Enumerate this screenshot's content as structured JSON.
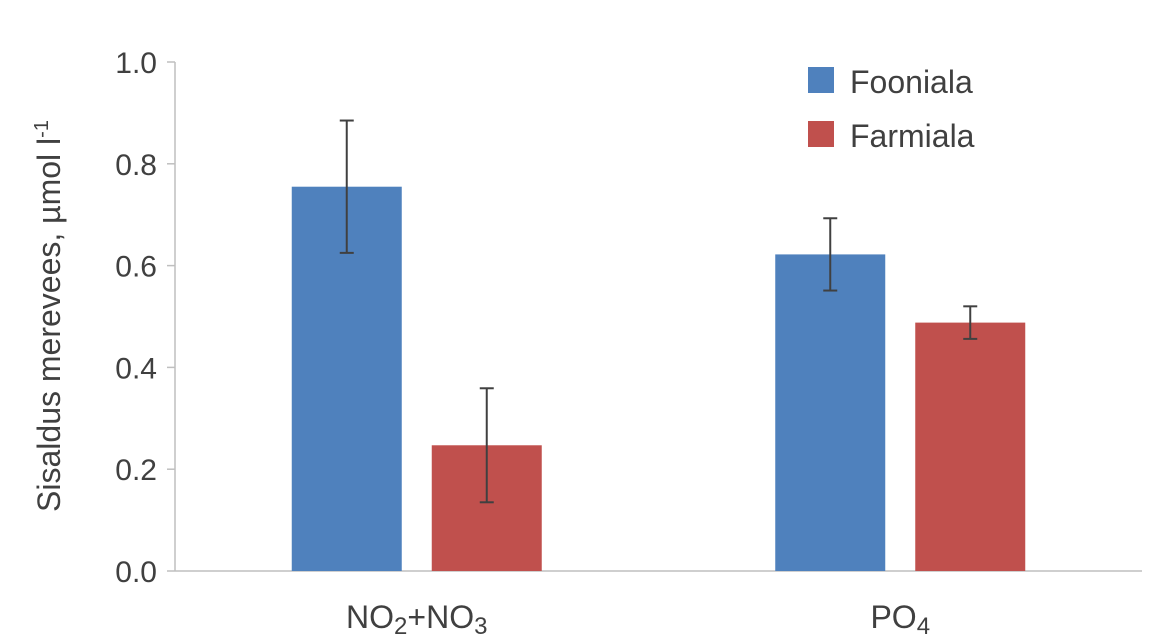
{
  "chart_data": {
    "type": "bar",
    "categories": [
      "NO2+NO3",
      "PO4"
    ],
    "category_labels": [
      {
        "parts": [
          {
            "text": "NO",
            "sub": false
          },
          {
            "text": "2",
            "sub": true
          },
          {
            "text": "+NO",
            "sub": false
          },
          {
            "text": "3",
            "sub": true
          }
        ]
      },
      {
        "parts": [
          {
            "text": "PO",
            "sub": false
          },
          {
            "text": "4",
            "sub": true
          }
        ]
      }
    ],
    "series": [
      {
        "name": "Fooniala",
        "color": "#4f81bd",
        "values": [
          0.755,
          0.622
        ],
        "error": [
          0.13,
          0.071
        ]
      },
      {
        "name": "Farmiala",
        "color": "#c0504d",
        "values": [
          0.247,
          0.488
        ],
        "error": [
          0.112,
          0.032
        ]
      }
    ],
    "ylabel": "Sisaldus merevees, µmol l",
    "ylabel_sup": "-1",
    "ylim": [
      0,
      1.0
    ],
    "yticks": [
      "0.0",
      "0.2",
      "0.4",
      "0.6",
      "0.8",
      "1.0"
    ],
    "ytick_values": [
      0,
      0.2,
      0.4,
      0.6,
      0.8,
      1.0
    ],
    "grid": false,
    "legend_position": "top-right"
  }
}
